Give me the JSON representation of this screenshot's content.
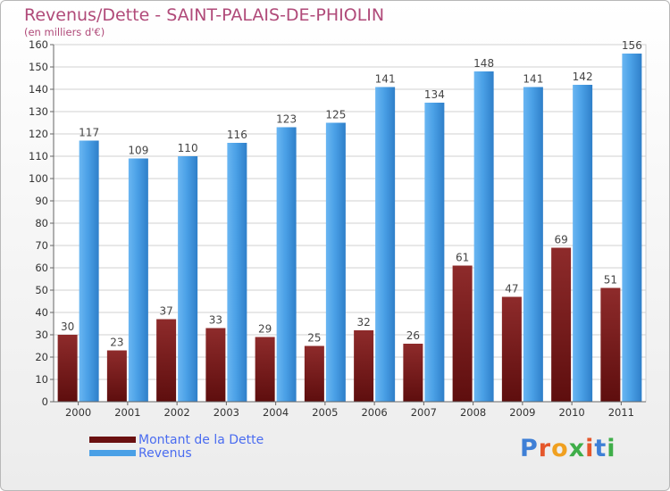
{
  "title": "Revenus/Dette - SAINT-PALAIS-DE-PHIOLIN",
  "subtitle": "(en milliers d'€)",
  "logo_text": "Proxiti",
  "colors": {
    "dette": "#7a1a1a",
    "revenus": "#4aa0e6",
    "title": "#b04a79",
    "legend_text": "#4a6cf0"
  },
  "chart_data": {
    "type": "bar",
    "categories": [
      "2000",
      "2001",
      "2002",
      "2003",
      "2004",
      "2005",
      "2006",
      "2007",
      "2008",
      "2009",
      "2010",
      "2011"
    ],
    "series": [
      {
        "name": "Montant de la Dette",
        "values": [
          30,
          23,
          37,
          33,
          29,
          25,
          32,
          26,
          61,
          47,
          69,
          51
        ]
      },
      {
        "name": "Revenus",
        "values": [
          117,
          109,
          110,
          116,
          123,
          125,
          141,
          134,
          148,
          141,
          142,
          156
        ]
      }
    ],
    "ylim": [
      0,
      160
    ],
    "ytick_step": 10,
    "grid": true,
    "legend_position": "bottom-left"
  }
}
